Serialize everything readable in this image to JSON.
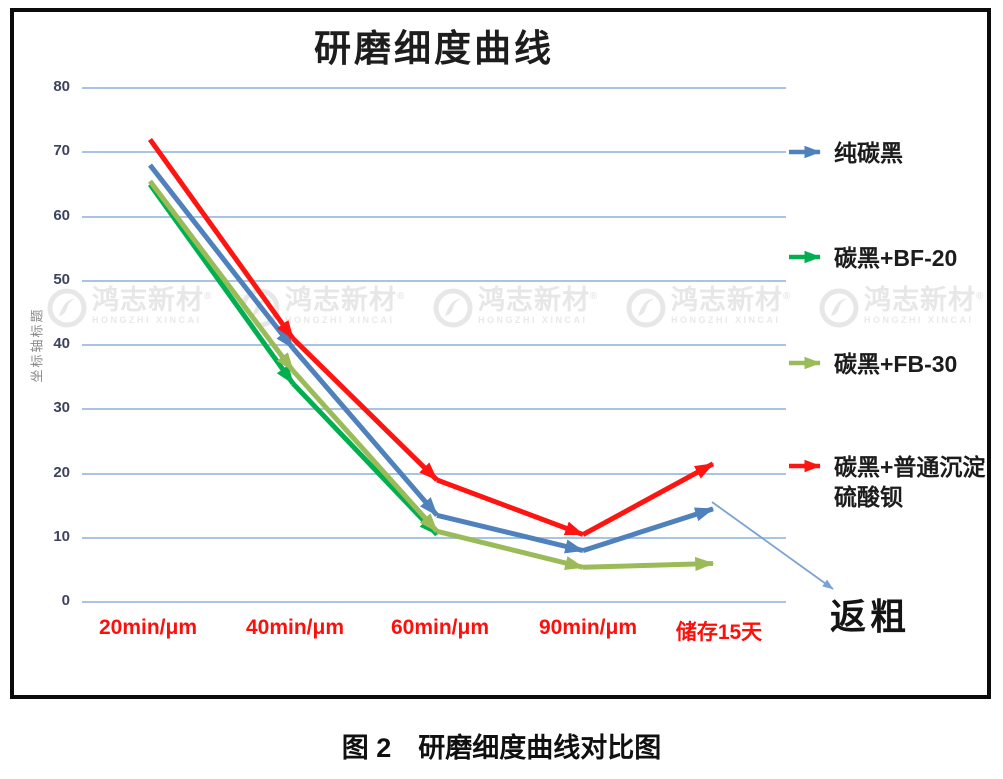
{
  "chart": {
    "title": "研磨细度曲线",
    "y_axis_title": "坐标轴标题",
    "y_ticks": [
      "80",
      "70",
      "60",
      "50",
      "40",
      "30",
      "20",
      "10",
      "0"
    ],
    "x_labels": [
      "20min/μm",
      "40min/μm",
      "60min/μm",
      "90min/μm",
      "储存15天"
    ],
    "x_label_color": "#fb100c",
    "gridline_color": "#a9c3e2",
    "tick_color": "#3c445c"
  },
  "chart_data": {
    "type": "line",
    "title": "研磨细度曲线",
    "categories": [
      "20min/μm",
      "40min/μm",
      "60min/μm",
      "90min/μm",
      "储存15天"
    ],
    "ylabel": "坐标轴标题",
    "ylim": [
      0,
      80
    ],
    "ytick_step": 10,
    "grid": true,
    "legend_position": "right",
    "series": [
      {
        "name": "纯碳黑",
        "color": "#4f81bd",
        "values": [
          68,
          39.5,
          13.5,
          8,
          14.5
        ]
      },
      {
        "name": "碳黑+BF-20",
        "color": "#00b050",
        "values": [
          65,
          34,
          10.5,
          null,
          null
        ]
      },
      {
        "name": "碳黑+FB-30",
        "color": "#9bbb59",
        "values": [
          65.5,
          36,
          11,
          5.4,
          6
        ]
      },
      {
        "name": "碳黑+普通沉淀硫酸钡",
        "color": "#fe1410",
        "values": [
          72,
          41,
          19,
          10.5,
          21.5
        ]
      }
    ],
    "annotations": [
      {
        "text": "返粗",
        "points_to": "纯碳黑 储存15天"
      }
    ]
  },
  "legend": {
    "items": [
      {
        "label": "纯碳黑",
        "color": "#4f81bd"
      },
      {
        "label": "碳黑+BF-20",
        "color": "#00b050"
      },
      {
        "label": "碳黑+FB-30",
        "color": "#9bbb59"
      },
      {
        "label": "碳黑+普通沉淀硫酸钡",
        "color": "#fe1410"
      }
    ]
  },
  "annotation": {
    "label": "返粗",
    "arrow_color": "#7ba2d4"
  },
  "watermark": {
    "brand": "鸿志新材",
    "reg": "®",
    "subtext": "HONGZHI XINCAI",
    "count": 5,
    "color": "#e7e7e7"
  },
  "caption": "图 2　研磨细度曲线对比图"
}
